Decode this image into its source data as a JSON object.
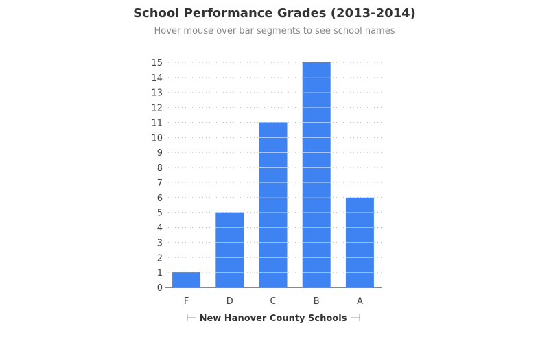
{
  "chart_data": {
    "type": "bar",
    "title": "School Performance Grades (2013-2014)",
    "subtitle": "Hover mouse over bar segments to see school names",
    "xlabel": "New Hanover County Schools",
    "ylabel": "",
    "categories": [
      "F",
      "D",
      "C",
      "B",
      "A"
    ],
    "values": [
      1,
      5,
      11,
      15,
      6
    ],
    "ylim": [
      0,
      15
    ],
    "yticks": [
      "0",
      "1",
      "2",
      "3",
      "4",
      "5",
      "6",
      "7",
      "8",
      "9",
      "10",
      "11",
      "12",
      "13",
      "14",
      "15"
    ],
    "grid": true,
    "bar_color": "#3f83f3",
    "segment_divider_color": "#ffffff",
    "gridline_color": "#bbbbbb",
    "axis_color": "#888888"
  }
}
